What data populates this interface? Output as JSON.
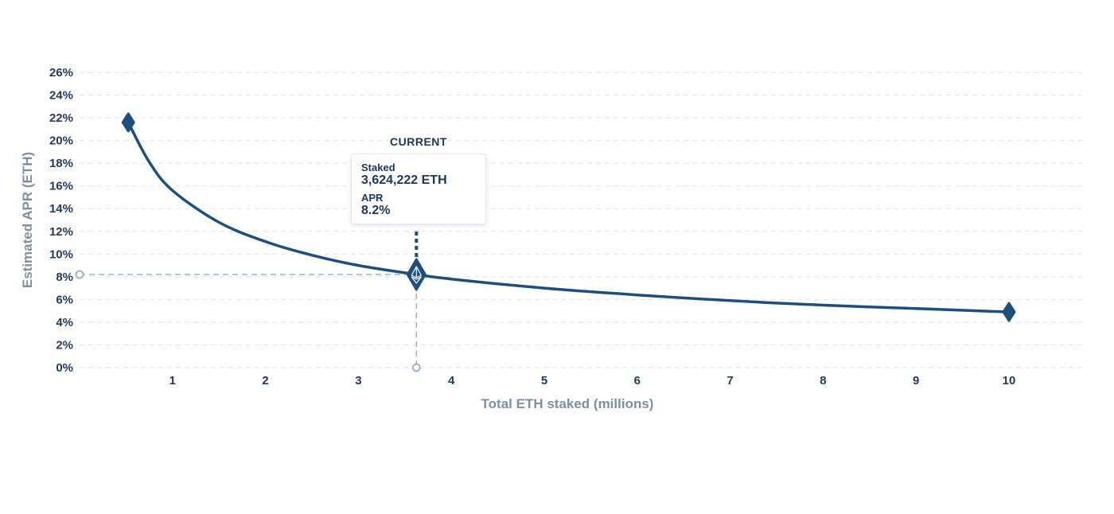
{
  "chart_data": {
    "type": "line",
    "xlabel": "Total ETH staked (millions)",
    "ylabel": "Estimated APR (ETH)",
    "xlim": [
      0,
      11
    ],
    "ylim": [
      0,
      26
    ],
    "x_ticks": [
      1,
      2,
      3,
      4,
      5,
      6,
      7,
      8,
      9,
      10
    ],
    "x_tick_labels": [
      "1",
      "2",
      "3",
      "4",
      "5",
      "6",
      "7",
      "8",
      "9",
      "10"
    ],
    "y_ticks": [
      0,
      2,
      4,
      6,
      8,
      10,
      12,
      14,
      16,
      18,
      20,
      22,
      24,
      26
    ],
    "y_tick_labels": [
      "0%",
      "2%",
      "4%",
      "6%",
      "8%",
      "10%",
      "12%",
      "14%",
      "16%",
      "18%",
      "20%",
      "22%",
      "24%",
      "26%"
    ],
    "grid": true,
    "series": [
      {
        "x": [
          0.524288,
          0.75,
          1,
          1.5,
          2,
          2.5,
          3,
          3.624222,
          4,
          5,
          6,
          7,
          8,
          9,
          10
        ],
        "y": [
          21.6,
          18.1,
          15.6,
          12.8,
          11.1,
          9.9,
          9.0,
          8.2,
          7.8,
          7.0,
          6.4,
          5.9,
          5.5,
          5.2,
          4.9
        ],
        "color": "#1d4e7e"
      }
    ],
    "endpoints": [
      {
        "x": 0.524288,
        "y": 21.6
      },
      {
        "x": 10,
        "y": 4.9
      }
    ],
    "current": {
      "x": 3.624222,
      "y": 8.2,
      "label": "CURRENT",
      "staked_label": "Staked",
      "staked_value": "3,624,222 ETH",
      "apr_label": "APR",
      "apr_value": "8.2%"
    },
    "colors": {
      "line": "#1d4e7e",
      "marker": "#1d4e7e",
      "grid": "#dfe3e8",
      "reference": "#9fb0c1",
      "tick_text": "#233a5c",
      "axis_title": "#7d8fa3"
    }
  }
}
